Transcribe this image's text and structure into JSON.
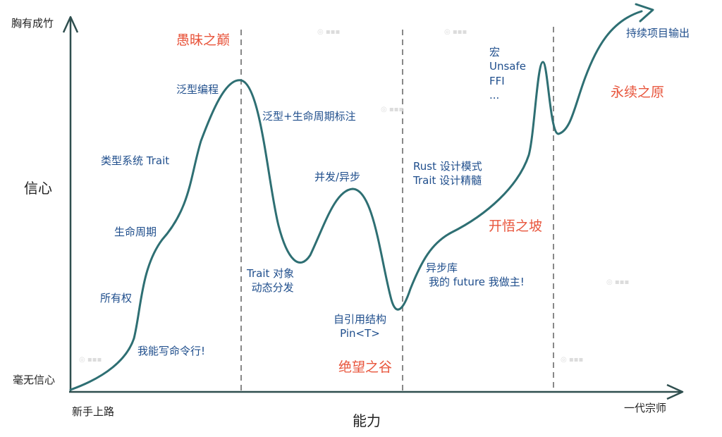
{
  "axes": {
    "y_top": "胸有成竹",
    "y_mid": "信心",
    "y_bottom": "毫无信心",
    "x_start": "新手上路",
    "x_mid": "能力",
    "x_end": "一代宗师"
  },
  "stages": {
    "peak": "愚昧之巅",
    "valley": "绝望之谷",
    "slope": "开悟之坡",
    "plateau": "永续之原"
  },
  "topics": {
    "cli": "我能写命令行!",
    "ownership": "所有权",
    "lifetime": "生命周期",
    "type_trait": "类型系统 Trait",
    "generic": "泛型编程",
    "generic_lifetime": "泛型+生命周期标注",
    "trait_object": [
      "Trait 对象",
      "动态分发"
    ],
    "concurrency": "并发/异步",
    "self_ref": [
      "自引用结构",
      "Pin<T>"
    ],
    "async_lib": [
      "异步库",
      "我的 future 我做主!"
    ],
    "design": [
      "Rust 设计模式",
      "Trait 设计精髓"
    ],
    "advanced": [
      "宏",
      "Unsafe",
      "FFI",
      "..."
    ],
    "output": "持续项目输出"
  },
  "colors": {
    "curve": "#2e6f73",
    "axis": "#2f4f4f",
    "divider": "#888888",
    "stage_text": "#e8553c",
    "topic_text": "#1f4e8c"
  }
}
